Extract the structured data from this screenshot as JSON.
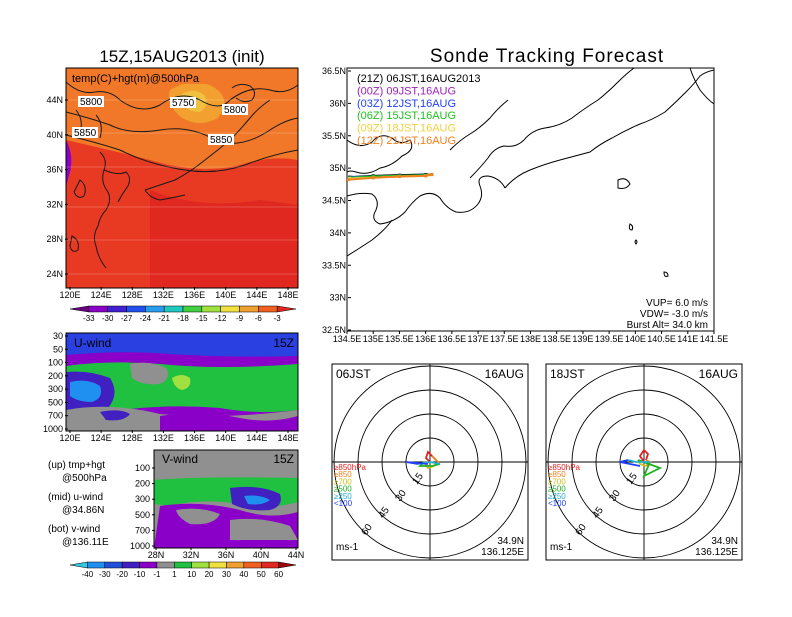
{
  "left_title": "15Z,15AUG2013 (init)",
  "right_title": "Sonde Tracking Forecast",
  "chart_data": [
    {
      "type": "heatmap",
      "panel": "upper-left map",
      "label": "temp(C)+hgt(m)@500hPa",
      "ytick_labels": [
        "44N",
        "40N",
        "36N",
        "32N",
        "28N",
        "24N"
      ],
      "xtick_labels": [
        "120E",
        "124E",
        "128E",
        "132E",
        "136E",
        "140E",
        "144E",
        "148E"
      ],
      "contour_labels": [
        "5800",
        "5750",
        "5800",
        "5850",
        "5850"
      ],
      "colorbar_labels": [
        "-33",
        "-30",
        "-27",
        "-24",
        "-21",
        "-18",
        "-15",
        "-12",
        "-9",
        "-6",
        "-3"
      ],
      "colorbar_colors": [
        "#6a0080",
        "#8a00c8",
        "#4020d0",
        "#2050f0",
        "#2a9cf0",
        "#20c8c0",
        "#40d040",
        "#a0e040",
        "#f0e040",
        "#f0a030",
        "#f06020",
        "#e02820"
      ]
    },
    {
      "type": "heatmap",
      "panel": "u-wind cross section",
      "label": "U-wind",
      "time": "15Z",
      "ytick_labels": [
        "30",
        "50",
        "100",
        "200",
        "300",
        "500",
        "700",
        "1000"
      ],
      "xtick_labels": [
        "120E",
        "124E",
        "128E",
        "132E",
        "136E",
        "140E",
        "144E",
        "148E"
      ]
    },
    {
      "type": "heatmap",
      "panel": "v-wind cross section",
      "label": "V-wind",
      "time": "15Z",
      "ytick_labels": [
        "100",
        "200",
        "300",
        "500",
        "700",
        "1000"
      ],
      "xtick_labels": [
        "28N",
        "32N",
        "36N",
        "40N",
        "44N"
      ],
      "colorbar_labels": [
        "-40",
        "-30",
        "-20",
        "-10",
        "-1",
        "1",
        "10",
        "20",
        "30",
        "40",
        "50",
        "60"
      ],
      "colorbar_colors": [
        "#30c8e0",
        "#2090f0",
        "#2050d8",
        "#4020c0",
        "#8a00c8",
        "#909090",
        "#20c040",
        "#a0e040",
        "#f0e040",
        "#f0a030",
        "#f06020",
        "#e02820",
        "#a00010"
      ]
    },
    {
      "type": "line",
      "panel": "sonde tracking map",
      "ytick_labels": [
        "36.5N",
        "36N",
        "35.5N",
        "35N",
        "34.5N",
        "34N",
        "33.5N",
        "33N",
        "32.5N"
      ],
      "xtick_labels": [
        "134.5E",
        "135E",
        "135.5E",
        "136E",
        "136.5E",
        "137E",
        "137.5E",
        "138E",
        "138.5E",
        "139E",
        "139.5E",
        "140E",
        "140.5E",
        "141E",
        "141.5E"
      ],
      "xlim": [
        134.5,
        141.5
      ],
      "ylim": [
        32.5,
        36.5
      ],
      "series": [
        {
          "name": "(21Z)  06JST,16AUG2013",
          "color": "#000000",
          "x": [
            134.55,
            135.0,
            135.5,
            136.0,
            136.12
          ],
          "y": [
            34.84,
            34.86,
            34.87,
            34.88,
            34.88
          ]
        },
        {
          "name": "(00Z)  09JST,16AUG",
          "color": "#a020c0",
          "x": [
            134.55,
            135.0,
            135.5,
            136.0,
            136.12
          ],
          "y": [
            34.82,
            34.84,
            34.85,
            34.87,
            34.88
          ]
        },
        {
          "name": "(03Z)  12JST,16AUG",
          "color": "#2040ff",
          "x": [
            134.58,
            135.0,
            135.5,
            136.0,
            136.12
          ],
          "y": [
            34.84,
            34.85,
            34.86,
            34.87,
            34.88
          ]
        },
        {
          "name": "(06Z)  15JST,16AUG",
          "color": "#20c020",
          "x": [
            134.55,
            135.0,
            135.5,
            136.0,
            136.12
          ],
          "y": [
            34.83,
            34.85,
            34.86,
            34.87,
            34.88
          ]
        },
        {
          "name": "(09Z)  18JST,16AUG",
          "color": "#f0d040",
          "x": [
            134.55,
            135.0,
            135.5,
            136.0,
            136.12
          ],
          "y": [
            34.82,
            34.83,
            34.85,
            34.86,
            34.88
          ]
        },
        {
          "name": "(12Z)  21JST,16AUG",
          "color": "#f08020",
          "x": [
            134.52,
            135.0,
            135.5,
            136.0,
            136.12
          ],
          "y": [
            34.8,
            34.83,
            34.85,
            34.86,
            34.88
          ]
        }
      ],
      "annotations": [
        "VUP= 6.0 m/s",
        "VDW= -3.0 m/s",
        "Burst Alt= 34.0 km"
      ]
    },
    {
      "type": "line",
      "panel": "hodograph 06JST",
      "time_label": "06JST",
      "date_label": "16AUG",
      "ring_labels": [
        "15",
        "30",
        "45",
        "60"
      ],
      "legend": [
        "≥850hPa",
        "≥850",
        "≥700",
        "≥500",
        "≥250",
        "<100"
      ],
      "legend_colors": [
        "#e02020",
        "#f08020",
        "#d0c020",
        "#20b020",
        "#20b0d0",
        "#2040ff"
      ],
      "units": "ms-1",
      "location": [
        "34.9N",
        "136.125E"
      ]
    },
    {
      "type": "line",
      "panel": "hodograph 18JST",
      "time_label": "18JST",
      "date_label": "16AUG",
      "ring_labels": [
        "15",
        "30",
        "45",
        "60"
      ],
      "legend": [
        "≥850hPa",
        "≥850",
        "≥700",
        "≥500",
        "≥250",
        "<100"
      ],
      "legend_colors": [
        "#e02020",
        "#f08020",
        "#d0c020",
        "#20b020",
        "#20b0d0",
        "#2040ff"
      ],
      "units": "ms-1",
      "location": [
        "34.9N",
        "136.125E"
      ]
    }
  ],
  "notes": {
    "up": "(up)  tmp+hgt",
    "up_sub": "@500hPa",
    "mid": "(mid)  u-wind",
    "mid_sub": "@34.86N",
    "bot": "(bot)  v-wind",
    "bot_sub": "@136.11E"
  }
}
